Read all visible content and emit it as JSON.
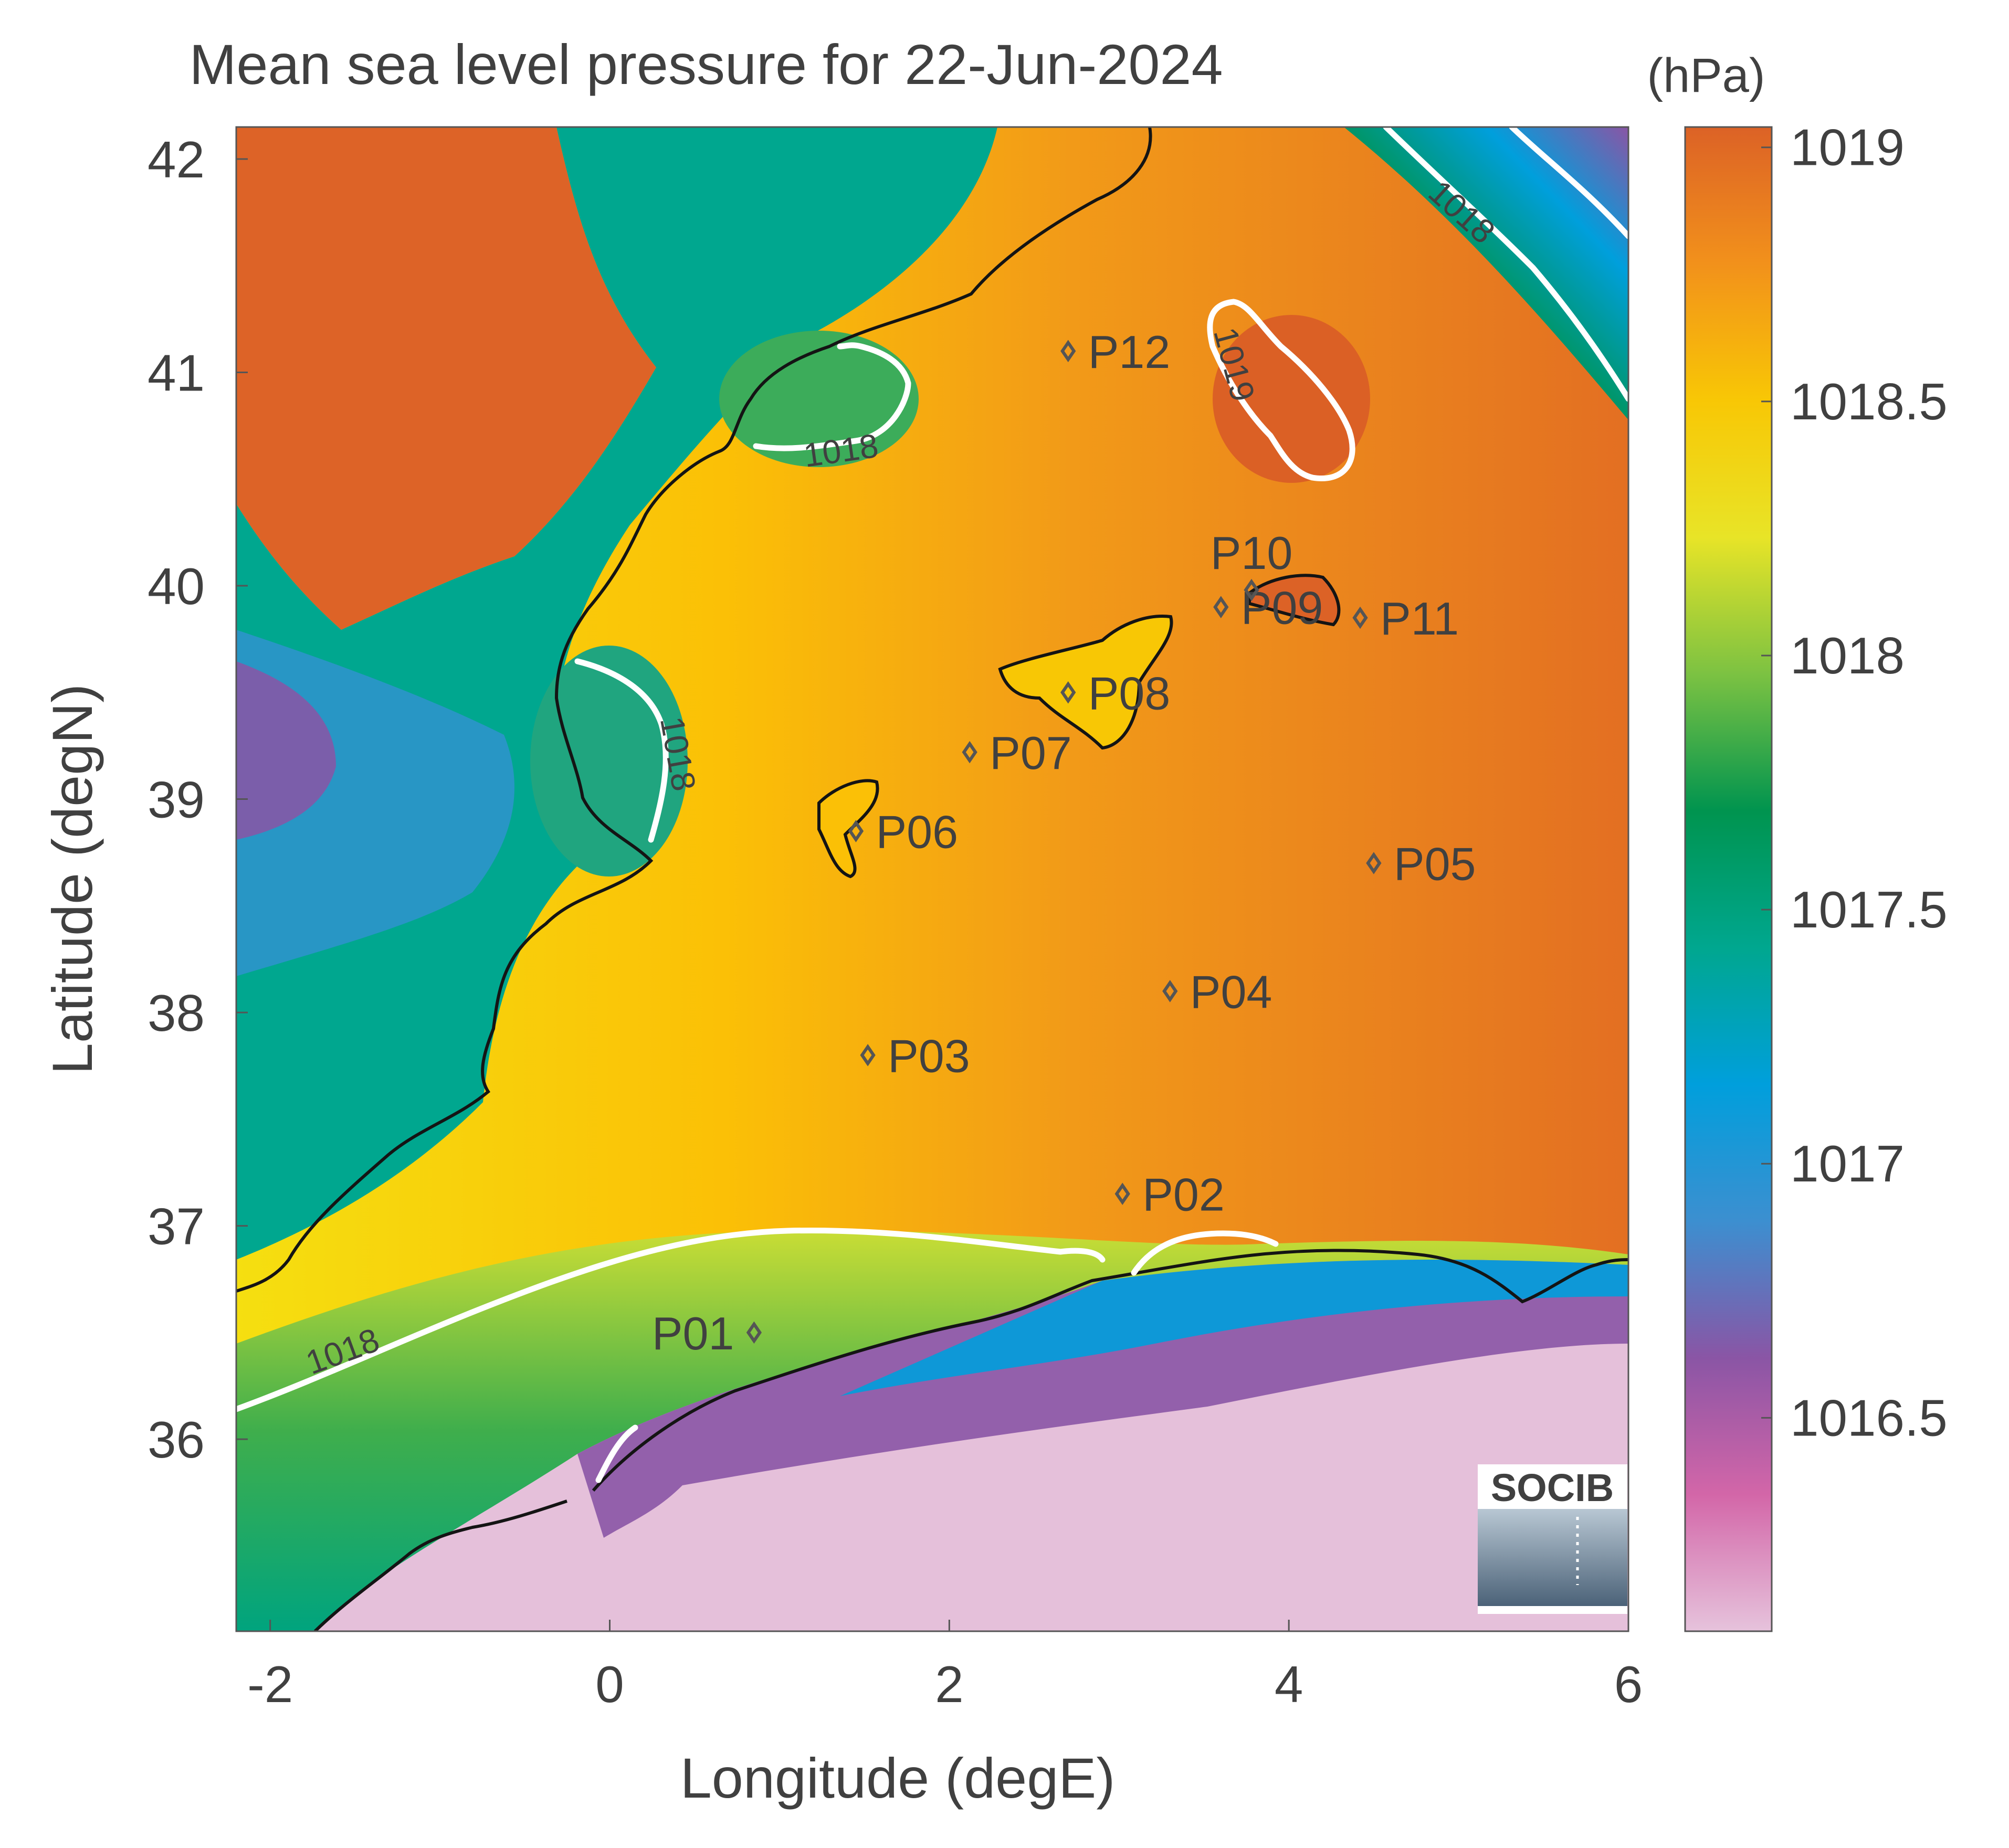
{
  "map": {
    "title": "Mean sea level pressure for 22-Jun-2024",
    "xlabel": "Longitude (degE)",
    "ylabel": "Latitude (degN)",
    "xlim": [
      -2.2,
      6
    ],
    "ylim": [
      35.1,
      42.15
    ],
    "xticks": [
      {
        "value": -2,
        "label": "-2"
      },
      {
        "value": 0,
        "label": "0"
      },
      {
        "value": 2,
        "label": "2"
      },
      {
        "value": 4,
        "label": "4"
      },
      {
        "value": 6,
        "label": "6"
      }
    ],
    "yticks": [
      {
        "value": 36,
        "label": "36"
      },
      {
        "value": 37,
        "label": "37"
      },
      {
        "value": 38,
        "label": "38"
      },
      {
        "value": 39,
        "label": "39"
      },
      {
        "value": 40,
        "label": "40"
      },
      {
        "value": 41,
        "label": "41"
      },
      {
        "value": 42,
        "label": "42"
      }
    ],
    "colorbar": {
      "unit": "(hPa)",
      "range": [
        1016.08,
        1019.04
      ],
      "ticks": [
        {
          "value": 1016.5,
          "label": "1016.5"
        },
        {
          "value": 1017,
          "label": "1017"
        },
        {
          "value": 1017.5,
          "label": "1017.5"
        },
        {
          "value": 1018,
          "label": "1018"
        },
        {
          "value": 1018.5,
          "label": "1018.5"
        },
        {
          "value": 1019,
          "label": "1019"
        }
      ],
      "colors": [
        "#e6c3dc",
        "#d366a8",
        "#8a55a5",
        "#3c8fd0",
        "#009fdc",
        "#00a78f",
        "#00944f",
        "#7cc242",
        "#e8e427",
        "#f8c705",
        "#f2911b",
        "#dc6226"
      ]
    },
    "stations": [
      {
        "label": "P01",
        "lon": 0.85,
        "lat": 36.5
      },
      {
        "label": "P02",
        "lon": 3.02,
        "lat": 37.15
      },
      {
        "label": "P03",
        "lon": 1.52,
        "lat": 37.8
      },
      {
        "label": "P04",
        "lon": 3.3,
        "lat": 38.1
      },
      {
        "label": "P05",
        "lon": 4.5,
        "lat": 38.7
      },
      {
        "label": "P06",
        "lon": 1.45,
        "lat": 38.85
      },
      {
        "label": "P07",
        "lon": 2.12,
        "lat": 39.22
      },
      {
        "label": "P08",
        "lon": 2.7,
        "lat": 39.5
      },
      {
        "label": "P09",
        "lon": 3.6,
        "lat": 39.9
      },
      {
        "label": "P10",
        "lon": 3.78,
        "lat": 39.98
      },
      {
        "label": "P11",
        "lon": 4.42,
        "lat": 39.85
      },
      {
        "label": "P12",
        "lon": 2.7,
        "lat": 41.1
      }
    ],
    "contour_labels": [
      "1018",
      "1018",
      "1018",
      "1019",
      "1018"
    ],
    "logo_text": "SOCIB"
  }
}
